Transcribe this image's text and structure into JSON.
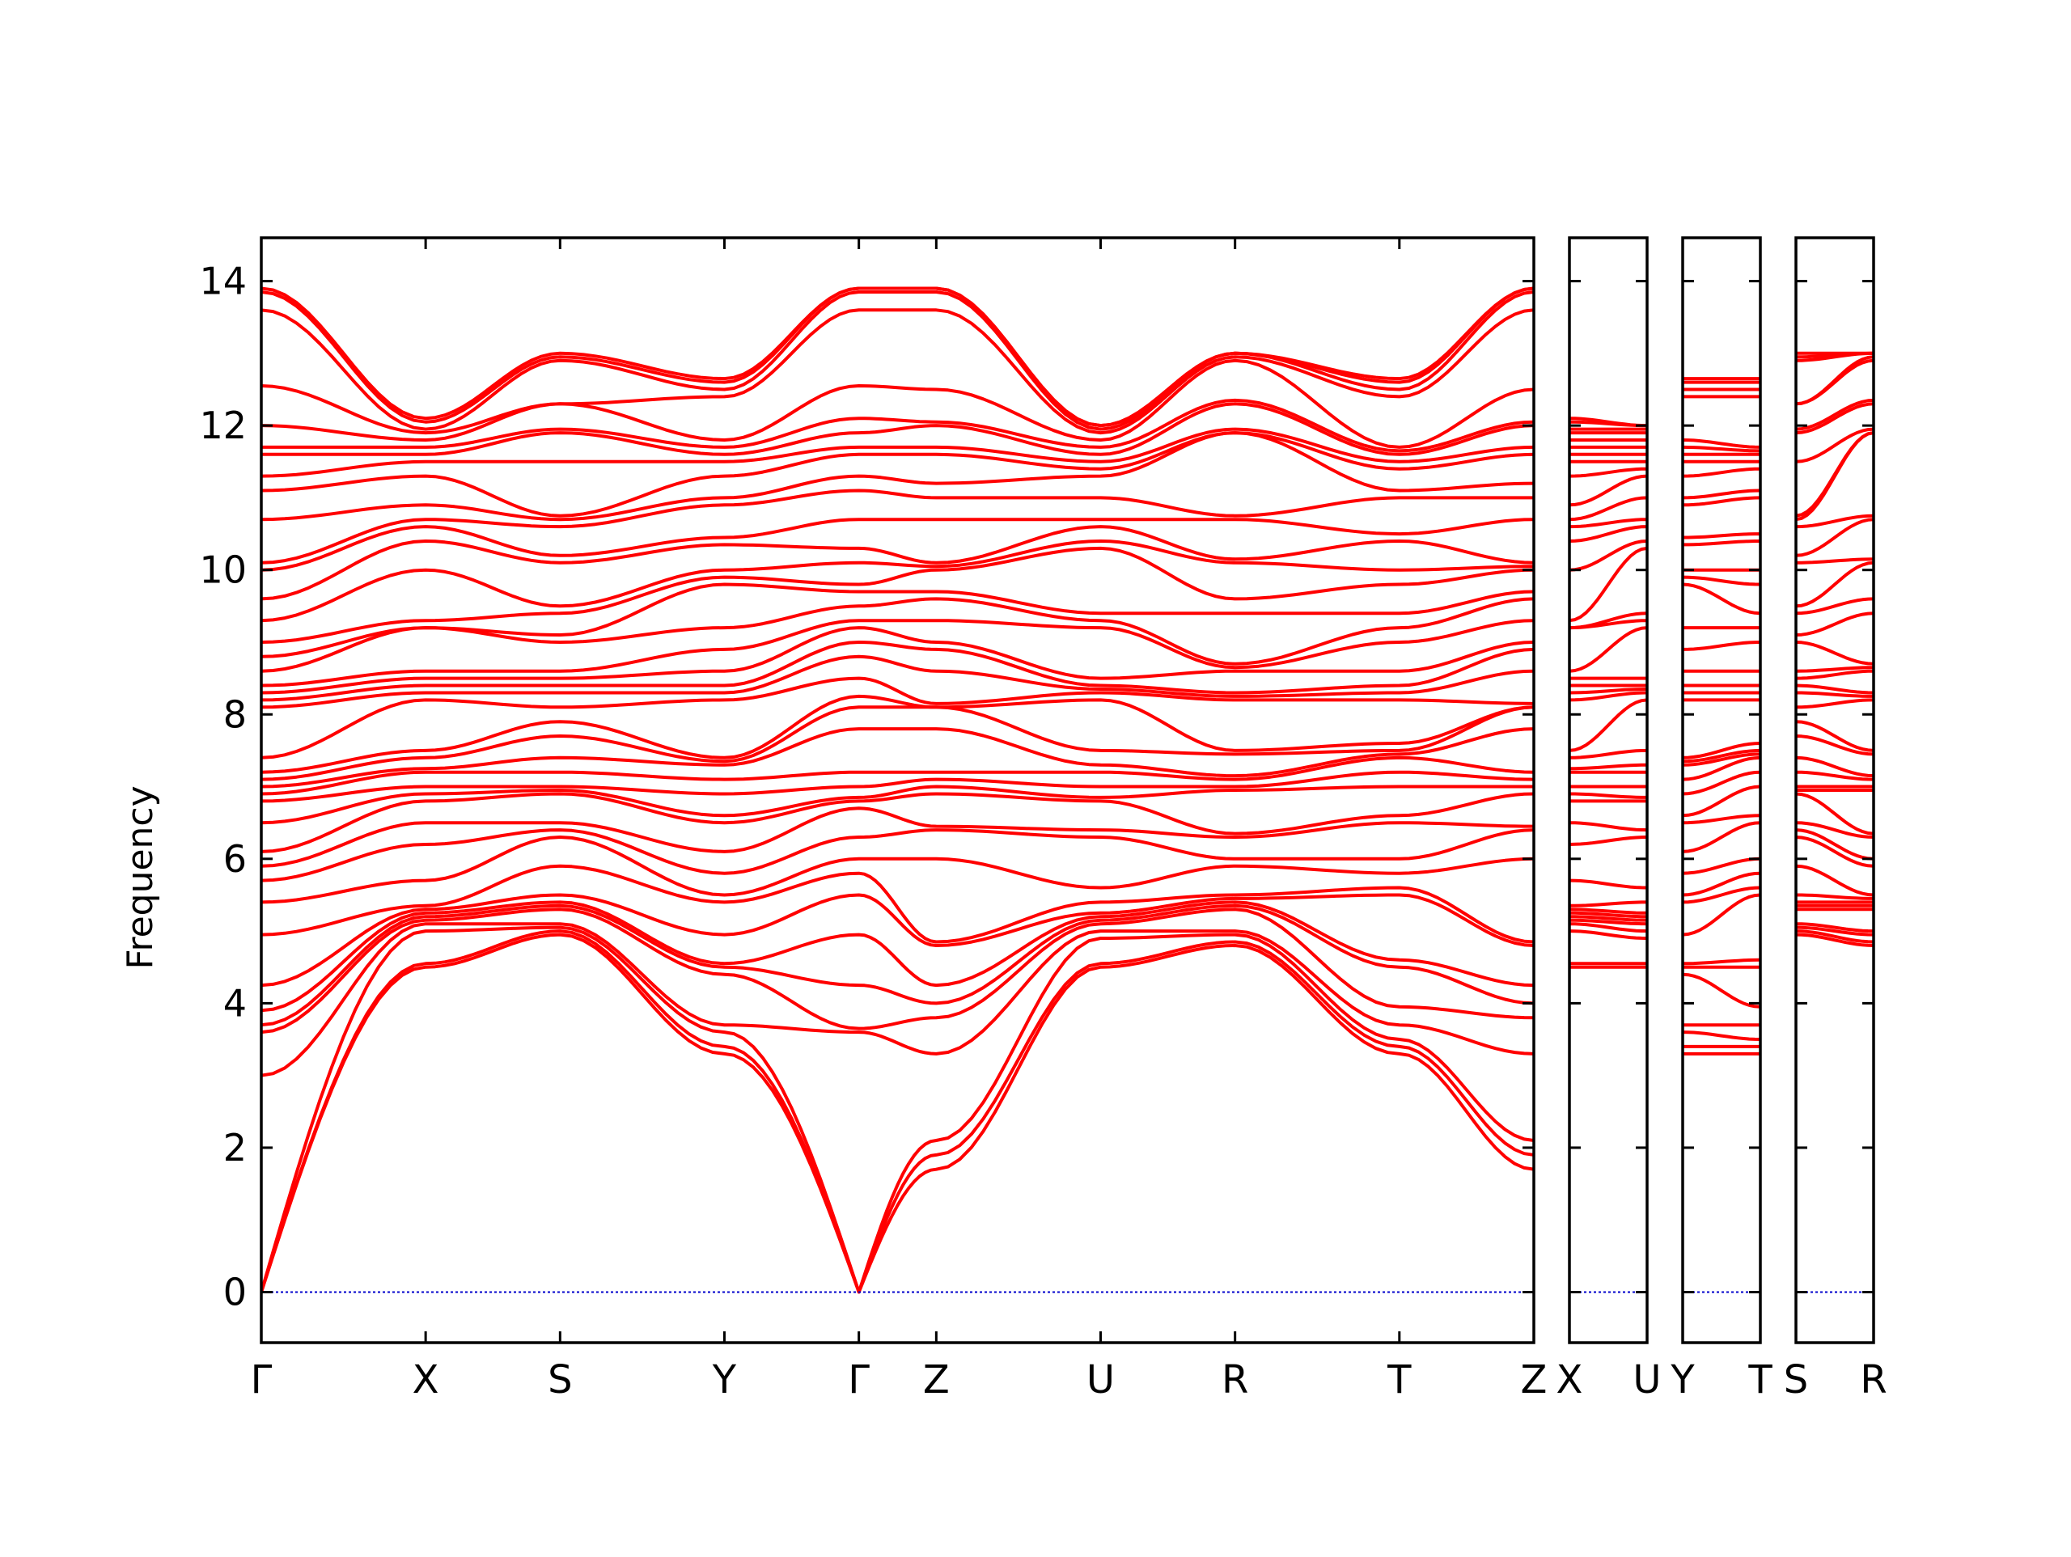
{
  "chart_data": {
    "type": "line",
    "title": "",
    "xlabel": "",
    "ylabel": "Frequency",
    "ylim": [
      -0.7,
      14.6
    ],
    "yticks": [
      0,
      2,
      4,
      6,
      8,
      10,
      12,
      14
    ],
    "ytick_labels": [
      "0",
      "2",
      "4",
      "6",
      "8",
      "10",
      "12",
      "14"
    ],
    "line_color": "#ff0000",
    "zero_line_color": "#0000cc",
    "grid": false,
    "legend": "none",
    "panels": [
      {
        "labels": [
          "Γ",
          "X",
          "S",
          "Y",
          "Γ",
          "Z",
          "U",
          "R",
          "T",
          "Z"
        ],
        "kpos": [
          0,
          1.21,
          2.2,
          3.41,
          4.4,
          4.97,
          6.18,
          7.17,
          8.38,
          9.37
        ],
        "xlim": [
          0,
          9.37
        ]
      },
      {
        "labels": [
          "X",
          "U"
        ],
        "kpos": [
          0,
          0.57
        ],
        "xlim": [
          0,
          0.57
        ]
      },
      {
        "labels": [
          "Y",
          "T"
        ],
        "kpos": [
          0,
          0.57
        ],
        "xlim": [
          0,
          0.57
        ]
      },
      {
        "labels": [
          "S",
          "R"
        ],
        "kpos": [
          0,
          0.57
        ],
        "xlim": [
          0,
          0.57
        ]
      }
    ],
    "segments": {
      "GX": {
        "a": [
          0,
          0,
          0,
          3.0,
          3.6,
          3.7,
          3.9,
          4.25,
          4.95,
          5.4,
          5.7,
          5.9,
          6.1,
          6.5,
          6.8,
          6.9,
          7.0,
          7.1,
          7.2,
          7.4,
          8.1,
          8.2,
          8.3,
          8.4,
          8.6,
          8.8,
          9.0,
          9.3,
          9.6,
          10.0,
          10.1,
          10.7,
          11.1,
          11.3,
          11.6,
          11.7,
          12.0,
          12.55,
          13.6,
          13.85,
          13.9
        ],
        "b": [
          4.5,
          4.55,
          5.0,
          5.1,
          5.15,
          5.2,
          5.25,
          5.3,
          5.35,
          5.7,
          6.2,
          6.5,
          6.8,
          6.9,
          7.0,
          7.2,
          7.25,
          7.4,
          7.5,
          8.2,
          8.3,
          8.4,
          8.5,
          8.6,
          9.2,
          9.2,
          9.3,
          10.0,
          10.4,
          10.6,
          10.7,
          10.9,
          11.3,
          11.5,
          11.6,
          11.7,
          11.8,
          11.9,
          11.95,
          12.05,
          12.1
        ]
      },
      "XS": {
        "a": [
          4.5,
          4.55,
          5.0,
          5.1,
          5.15,
          5.2,
          5.25,
          5.3,
          5.35,
          5.7,
          6.2,
          6.5,
          6.8,
          6.9,
          7.0,
          7.2,
          7.25,
          7.4,
          7.5,
          8.2,
          8.3,
          8.4,
          8.5,
          8.6,
          9.2,
          9.2,
          9.3,
          10.0,
          10.4,
          10.6,
          10.7,
          10.9,
          11.3,
          11.5,
          11.6,
          11.7,
          11.8,
          11.9,
          11.95,
          12.05,
          12.1
        ],
        "b": [
          4.95,
          5.0,
          5.05,
          5.1,
          5.3,
          5.35,
          5.4,
          5.5,
          5.9,
          6.3,
          6.4,
          6.5,
          6.9,
          6.95,
          7.0,
          7.2,
          7.4,
          7.7,
          7.9,
          8.1,
          8.3,
          8.4,
          8.5,
          8.6,
          9.0,
          9.1,
          9.4,
          9.5,
          10.1,
          10.2,
          10.6,
          10.7,
          10.75,
          11.5,
          11.9,
          11.95,
          12.3,
          12.3,
          12.9,
          12.95,
          13.0
        ]
      },
      "SY": {
        "a": [
          4.95,
          5.0,
          5.05,
          5.1,
          5.3,
          5.35,
          5.4,
          5.5,
          5.9,
          6.3,
          6.4,
          6.5,
          6.9,
          6.95,
          7.0,
          7.2,
          7.4,
          7.7,
          7.9,
          8.1,
          8.3,
          8.4,
          8.5,
          8.6,
          9.0,
          9.1,
          9.4,
          9.5,
          10.1,
          10.2,
          10.6,
          10.7,
          10.75,
          11.5,
          11.9,
          11.95,
          12.3,
          12.3,
          12.9,
          12.95,
          13.0
        ],
        "b": [
          3.3,
          3.4,
          3.6,
          3.7,
          4.4,
          4.5,
          4.55,
          4.95,
          5.4,
          5.5,
          5.8,
          6.1,
          6.5,
          6.6,
          6.9,
          7.1,
          7.3,
          7.35,
          7.4,
          8.2,
          8.3,
          8.4,
          8.6,
          8.9,
          9.2,
          9.8,
          9.9,
          10.0,
          10.35,
          10.45,
          10.9,
          11.0,
          11.3,
          11.5,
          11.6,
          11.7,
          11.8,
          12.4,
          12.5,
          12.6,
          12.65
        ]
      },
      "YG": {
        "a": [
          3.3,
          3.4,
          3.6,
          3.7,
          4.4,
          4.5,
          4.55,
          4.95,
          5.4,
          5.5,
          5.8,
          6.1,
          6.5,
          6.6,
          6.9,
          7.1,
          7.3,
          7.35,
          7.4,
          8.2,
          8.3,
          8.4,
          8.6,
          8.9,
          9.2,
          9.8,
          9.9,
          10.0,
          10.35,
          10.45,
          10.9,
          11.0,
          11.3,
          11.5,
          11.6,
          11.7,
          11.8,
          12.4,
          12.5,
          12.6,
          12.65
        ],
        "b": [
          0,
          0,
          0,
          3.6,
          3.65,
          4.25,
          4.95,
          5.5,
          5.8,
          6.0,
          6.3,
          6.7,
          6.8,
          6.85,
          7.0,
          7.2,
          7.8,
          8.1,
          8.25,
          8.5,
          8.8,
          9.0,
          9.2,
          9.3,
          9.5,
          9.7,
          9.8,
          10.1,
          10.3,
          10.7,
          11.1,
          11.3,
          11.6,
          11.7,
          11.9,
          12.1,
          12.55,
          13.6,
          13.85,
          13.9,
          13.9
        ]
      },
      "GZ": {
        "a": [
          0,
          0,
          0,
          3.6,
          3.65,
          4.25,
          4.95,
          5.5,
          5.8,
          6.0,
          6.3,
          6.7,
          6.8,
          6.85,
          7.0,
          7.2,
          7.8,
          8.1,
          8.25,
          8.5,
          8.8,
          9.0,
          9.2,
          9.3,
          9.5,
          9.7,
          9.8,
          10.1,
          10.3,
          10.7,
          11.1,
          11.3,
          11.6,
          11.7,
          11.9,
          12.1,
          12.55,
          13.6,
          13.85,
          13.9,
          13.9
        ],
        "b": [
          1.7,
          1.9,
          2.1,
          3.3,
          3.8,
          4.0,
          4.25,
          4.8,
          4.85,
          6.0,
          6.4,
          6.45,
          6.9,
          7.0,
          7.1,
          7.2,
          7.8,
          8.1,
          8.1,
          8.15,
          8.6,
          8.9,
          9.0,
          9.3,
          9.6,
          9.7,
          10.0,
          10.05,
          10.1,
          10.7,
          11.0,
          11.2,
          11.6,
          11.7,
          12.0,
          12.05,
          12.5,
          13.6,
          13.85,
          13.9,
          13.9
        ]
      },
      "ZU": {
        "a": [
          1.7,
          1.9,
          2.1,
          3.3,
          3.8,
          4.0,
          4.25,
          4.8,
          4.85,
          6.0,
          6.4,
          6.45,
          6.9,
          7.0,
          7.1,
          7.2,
          7.8,
          8.1,
          8.1,
          8.15,
          8.6,
          8.9,
          9.0,
          9.3,
          9.6,
          9.7,
          10.0,
          10.05,
          10.1,
          10.7,
          11.0,
          11.2,
          11.6,
          11.7,
          12.0,
          12.05,
          12.5,
          13.6,
          13.85,
          13.9,
          13.9
        ],
        "b": [
          4.5,
          4.55,
          4.9,
          5.0,
          5.1,
          5.15,
          5.2,
          5.25,
          5.4,
          5.6,
          6.3,
          6.4,
          6.8,
          6.85,
          7.0,
          7.2,
          7.3,
          7.5,
          8.2,
          8.3,
          8.35,
          8.4,
          8.5,
          9.2,
          9.3,
          9.4,
          10.3,
          10.4,
          10.6,
          10.7,
          11.0,
          11.3,
          11.4,
          11.5,
          11.6,
          11.7,
          11.8,
          11.9,
          11.95,
          12.0,
          12.0
        ]
      },
      "UR": {
        "a": [
          4.5,
          4.55,
          4.9,
          5.0,
          5.1,
          5.15,
          5.2,
          5.25,
          5.4,
          5.6,
          6.3,
          6.4,
          6.8,
          6.85,
          7.0,
          7.2,
          7.3,
          7.5,
          8.2,
          8.3,
          8.35,
          8.4,
          8.5,
          9.2,
          9.3,
          9.4,
          10.3,
          10.4,
          10.6,
          10.7,
          11.0,
          11.3,
          11.4,
          11.5,
          11.6,
          11.7,
          11.8,
          11.9,
          11.95,
          12.0,
          12.0
        ],
        "b": [
          4.8,
          4.85,
          4.95,
          5.0,
          5.3,
          5.35,
          5.4,
          5.45,
          5.5,
          5.9,
          6.0,
          6.3,
          6.35,
          6.95,
          7.0,
          7.1,
          7.15,
          7.45,
          7.5,
          8.2,
          8.25,
          8.3,
          8.6,
          8.65,
          8.7,
          9.4,
          9.6,
          10.1,
          10.15,
          10.7,
          10.75,
          11.9,
          11.9,
          11.95,
          12.3,
          12.35,
          12.9,
          12.95,
          13.0,
          13.0,
          13.0
        ]
      },
      "RT": {
        "a": [
          4.8,
          4.85,
          4.95,
          5.0,
          5.3,
          5.35,
          5.4,
          5.45,
          5.5,
          5.9,
          6.0,
          6.3,
          6.35,
          6.95,
          7.0,
          7.1,
          7.15,
          7.45,
          7.5,
          8.2,
          8.25,
          8.3,
          8.6,
          8.65,
          8.7,
          9.4,
          9.6,
          10.1,
          10.15,
          10.7,
          10.75,
          11.9,
          11.9,
          11.95,
          12.3,
          12.35,
          12.9,
          12.95,
          13.0,
          13.0,
          13.0
        ],
        "b": [
          3.3,
          3.4,
          3.5,
          3.7,
          3.95,
          4.5,
          4.6,
          5.5,
          5.6,
          5.8,
          6.0,
          6.5,
          6.6,
          7.0,
          7.2,
          7.4,
          7.45,
          7.5,
          7.6,
          8.2,
          8.3,
          8.4,
          8.6,
          9.0,
          9.2,
          9.4,
          9.8,
          10.0,
          10.4,
          10.5,
          11.0,
          11.1,
          11.4,
          11.5,
          11.6,
          11.65,
          11.7,
          12.4,
          12.5,
          12.6,
          12.65
        ]
      },
      "TZ": {
        "a": [
          3.3,
          3.4,
          3.5,
          3.7,
          3.95,
          4.5,
          4.6,
          5.5,
          5.6,
          5.8,
          6.0,
          6.5,
          6.6,
          7.0,
          7.2,
          7.4,
          7.45,
          7.5,
          7.6,
          8.2,
          8.3,
          8.4,
          8.6,
          9.0,
          9.2,
          9.4,
          9.8,
          10.0,
          10.4,
          10.5,
          11.0,
          11.1,
          11.4,
          11.5,
          11.6,
          11.65,
          11.7,
          12.4,
          12.5,
          12.6,
          12.65
        ],
        "b": [
          1.7,
          1.9,
          2.1,
          3.3,
          3.8,
          4.0,
          4.25,
          4.8,
          4.85,
          6.0,
          6.4,
          6.45,
          6.9,
          7.0,
          7.1,
          7.2,
          7.8,
          8.1,
          8.1,
          8.15,
          8.6,
          8.9,
          9.0,
          9.3,
          9.6,
          9.7,
          10.0,
          10.05,
          10.1,
          10.7,
          11.0,
          11.2,
          11.6,
          11.7,
          12.0,
          12.05,
          12.5,
          13.6,
          13.85,
          13.9,
          13.9
        ]
      },
      "XU": {
        "a": [
          4.5,
          4.55,
          5.0,
          5.1,
          5.15,
          5.2,
          5.25,
          5.3,
          5.35,
          5.7,
          6.2,
          6.5,
          6.8,
          6.9,
          7.0,
          7.2,
          7.25,
          7.4,
          7.5,
          8.2,
          8.3,
          8.4,
          8.5,
          8.6,
          9.2,
          9.2,
          9.3,
          10.0,
          10.4,
          10.6,
          10.7,
          10.9,
          11.3,
          11.5,
          11.6,
          11.7,
          11.8,
          11.9,
          11.95,
          12.05,
          12.1
        ],
        "b": [
          4.5,
          4.55,
          4.9,
          5.0,
          5.1,
          5.15,
          5.2,
          5.25,
          5.4,
          5.6,
          6.3,
          6.4,
          6.8,
          6.85,
          7.0,
          7.2,
          7.3,
          7.5,
          8.2,
          8.3,
          8.35,
          8.4,
          8.5,
          9.2,
          9.3,
          9.4,
          10.3,
          10.4,
          10.6,
          10.7,
          11.0,
          11.3,
          11.4,
          11.5,
          11.6,
          11.7,
          11.8,
          11.9,
          11.95,
          12.0,
          12.0
        ]
      },
      "YT": {
        "a": [
          3.3,
          3.4,
          3.6,
          3.7,
          4.4,
          4.5,
          4.55,
          4.95,
          5.4,
          5.5,
          5.8,
          6.1,
          6.5,
          6.6,
          6.9,
          7.1,
          7.3,
          7.35,
          7.4,
          8.2,
          8.3,
          8.4,
          8.6,
          8.9,
          9.2,
          9.8,
          9.9,
          10.0,
          10.35,
          10.45,
          10.9,
          11.0,
          11.3,
          11.5,
          11.6,
          11.7,
          11.8,
          12.4,
          12.5,
          12.6,
          12.65
        ],
        "b": [
          3.3,
          3.4,
          3.5,
          3.7,
          3.95,
          4.5,
          4.6,
          5.5,
          5.6,
          5.8,
          6.0,
          6.5,
          6.6,
          7.0,
          7.2,
          7.4,
          7.45,
          7.5,
          7.6,
          8.2,
          8.3,
          8.4,
          8.6,
          9.0,
          9.2,
          9.4,
          9.8,
          10.0,
          10.4,
          10.5,
          11.0,
          11.1,
          11.4,
          11.5,
          11.6,
          11.65,
          11.7,
          12.4,
          12.5,
          12.6,
          12.65
        ]
      },
      "SR": {
        "a": [
          4.95,
          5.0,
          5.05,
          5.1,
          5.3,
          5.35,
          5.4,
          5.5,
          5.9,
          6.3,
          6.4,
          6.5,
          6.9,
          6.95,
          7.0,
          7.2,
          7.4,
          7.7,
          7.9,
          8.1,
          8.3,
          8.4,
          8.5,
          8.6,
          9.0,
          9.1,
          9.4,
          9.5,
          10.1,
          10.2,
          10.6,
          10.7,
          10.75,
          11.5,
          11.9,
          11.95,
          12.3,
          12.3,
          12.9,
          12.95,
          13.0
        ],
        "b": [
          4.8,
          4.85,
          4.95,
          5.0,
          5.3,
          5.35,
          5.4,
          5.45,
          5.5,
          5.9,
          6.0,
          6.3,
          6.35,
          6.95,
          7.0,
          7.1,
          7.15,
          7.45,
          7.5,
          8.2,
          8.25,
          8.3,
          8.6,
          8.65,
          8.7,
          9.4,
          9.6,
          10.1,
          10.15,
          10.7,
          10.75,
          11.9,
          11.9,
          11.95,
          12.3,
          12.35,
          12.9,
          12.95,
          13.0,
          13.0,
          13.0
        ]
      }
    },
    "paths": [
      [
        "GX",
        "XS",
        "SY",
        "YG",
        "GZ",
        "ZU",
        "UR",
        "RT",
        "TZ"
      ],
      [
        "XU"
      ],
      [
        "YT"
      ],
      [
        "SR"
      ]
    ]
  }
}
